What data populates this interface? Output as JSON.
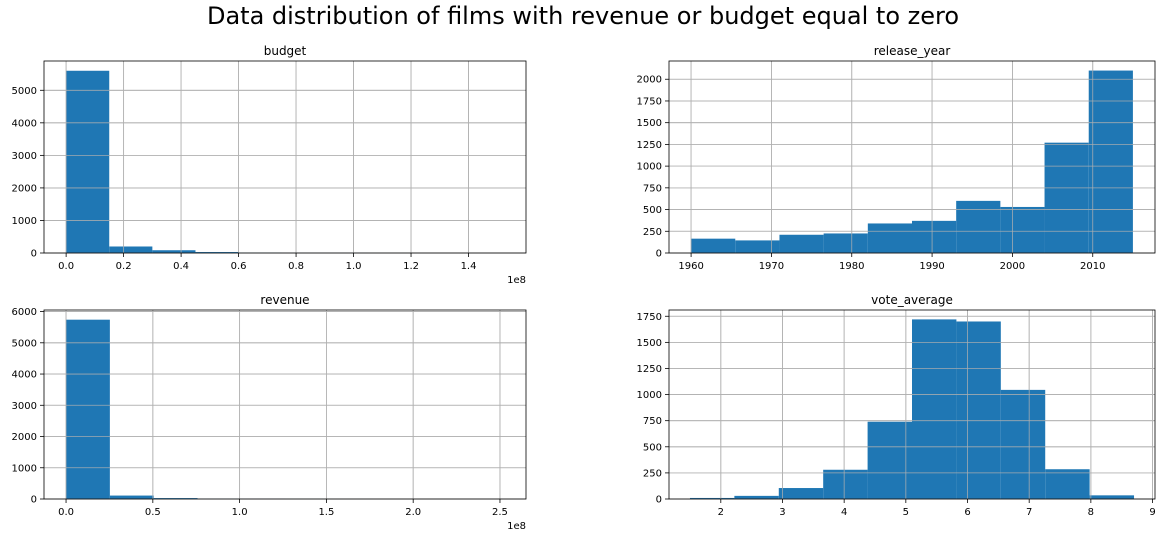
{
  "figure": {
    "title": "Data distribution of films with revenue or budget equal to zero"
  },
  "colors": {
    "bar": "#1f77b4",
    "grid": "#b0b0b0",
    "spine": "#000000"
  },
  "chart_data": [
    {
      "type": "bar",
      "title": "budget",
      "xlabel": "",
      "ylabel": "",
      "x_offset_text": "1e8",
      "grid": true,
      "xlim": [
        -0.077,
        1.6
      ],
      "ylim": [
        0,
        5900
      ],
      "bin_edges": [
        0,
        0.15,
        0.3,
        0.45,
        0.6,
        0.75,
        0.9,
        1.05,
        1.2,
        1.35,
        1.5
      ],
      "values": [
        5600,
        200,
        85,
        30,
        15,
        5,
        3,
        2,
        1,
        1
      ],
      "xticks": [
        0,
        0.2,
        0.4,
        0.6,
        0.8,
        1.0,
        1.2,
        1.4
      ],
      "xtick_labels": [
        "0.0",
        "0.2",
        "0.4",
        "0.6",
        "0.8",
        "1.0",
        "1.2",
        "1.4"
      ],
      "yticks": [
        0,
        1000,
        2000,
        3000,
        4000,
        5000
      ],
      "ytick_labels": [
        "0",
        "1000",
        "2000",
        "3000",
        "4000",
        "5000"
      ]
    },
    {
      "type": "bar",
      "title": "release_year",
      "xlabel": "",
      "ylabel": "",
      "grid": true,
      "xlim": [
        1957.2,
        1017.75
      ],
      "ylim": [
        0,
        2210
      ],
      "bin_edges": [
        1960,
        1965.5,
        1971,
        1976.5,
        1982,
        1987.5,
        1993,
        1998.5,
        2004,
        2009.5,
        2015
      ],
      "values": [
        165,
        145,
        210,
        225,
        340,
        370,
        600,
        530,
        1270,
        2100
      ],
      "xticks": [
        1960,
        1970,
        1980,
        1990,
        2000,
        2010
      ],
      "xtick_labels": [
        "1960",
        "1970",
        "1980",
        "1990",
        "2000",
        "2010"
      ],
      "yticks": [
        0,
        250,
        500,
        750,
        1000,
        1250,
        1500,
        1750,
        2000
      ],
      "ytick_labels": [
        "0",
        "250",
        "500",
        "750",
        "1000",
        "1250",
        "1500",
        "1750",
        "2000"
      ]
    },
    {
      "type": "bar",
      "title": "revenue",
      "xlabel": "",
      "ylabel": "",
      "x_offset_text": "1e8",
      "grid": true,
      "xlim": [
        -0.127,
        2.65
      ],
      "ylim": [
        0,
        6050
      ],
      "bin_edges": [
        0,
        0.2525,
        0.505,
        0.7575,
        1.01,
        1.2625,
        1.515,
        1.7675,
        2.02,
        2.2725,
        2.525
      ],
      "values": [
        5740,
        110,
        30,
        12,
        8,
        3,
        2,
        1,
        1,
        1
      ],
      "xticks": [
        0,
        0.5,
        1.0,
        1.5,
        2.0,
        2.5
      ],
      "xtick_labels": [
        "0.0",
        "0.5",
        "1.0",
        "1.5",
        "2.0",
        "2.5"
      ],
      "yticks": [
        0,
        1000,
        2000,
        3000,
        4000,
        5000,
        6000
      ],
      "ytick_labels": [
        "0",
        "1000",
        "2000",
        "3000",
        "4000",
        "5000",
        "6000"
      ]
    },
    {
      "type": "bar",
      "title": "vote_average",
      "xlabel": "",
      "ylabel": "",
      "grid": true,
      "xlim": [
        1.16,
        9.04
      ],
      "ylim": [
        0,
        1810
      ],
      "bin_edges": [
        1.5,
        2.22,
        2.94,
        3.66,
        4.38,
        5.1,
        5.82,
        6.54,
        7.26,
        7.98,
        8.7
      ],
      "values": [
        10,
        30,
        105,
        280,
        740,
        1720,
        1700,
        1045,
        285,
        35
      ],
      "xticks": [
        2,
        3,
        4,
        5,
        6,
        7,
        8,
        9
      ],
      "xtick_labels": [
        "2",
        "3",
        "4",
        "5",
        "6",
        "7",
        "8",
        "9"
      ],
      "yticks": [
        0,
        250,
        500,
        750,
        1000,
        1250,
        1500,
        1750
      ],
      "ytick_labels": [
        "0",
        "250",
        "500",
        "750",
        "1000",
        "1250",
        "1500",
        "1750"
      ]
    }
  ]
}
